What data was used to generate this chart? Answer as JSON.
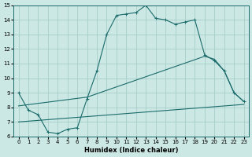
{
  "xlabel": "Humidex (Indice chaleur)",
  "xlim": [
    -0.5,
    23.5
  ],
  "ylim": [
    6,
    15
  ],
  "yticks": [
    6,
    7,
    8,
    9,
    10,
    11,
    12,
    13,
    14,
    15
  ],
  "xticks": [
    0,
    1,
    2,
    3,
    4,
    5,
    6,
    7,
    8,
    9,
    10,
    11,
    12,
    13,
    14,
    15,
    16,
    17,
    18,
    19,
    20,
    21,
    22,
    23
  ],
  "bg_color": "#cce8e4",
  "grid_color": "#a8ceca",
  "line_color": "#1a6b6b",
  "line1_x": [
    0,
    1,
    2,
    3,
    4,
    5,
    6,
    7,
    8,
    9,
    10,
    11,
    12,
    13,
    14,
    15,
    16,
    17,
    18,
    19,
    20,
    21,
    22,
    23
  ],
  "line1_y": [
    9.0,
    7.8,
    7.5,
    6.3,
    6.2,
    6.5,
    6.6,
    8.6,
    10.5,
    13.0,
    14.3,
    14.4,
    14.5,
    15.0,
    14.1,
    14.0,
    13.7,
    13.85,
    14.0,
    11.6,
    11.2,
    10.5,
    9.0,
    8.4
  ],
  "line2_x": [
    0,
    7,
    19,
    20,
    21,
    22,
    23
  ],
  "line2_y": [
    8.1,
    8.7,
    11.5,
    11.3,
    10.5,
    9.0,
    8.4
  ],
  "line3_x": [
    0,
    23
  ],
  "line3_y": [
    7.0,
    8.2
  ]
}
